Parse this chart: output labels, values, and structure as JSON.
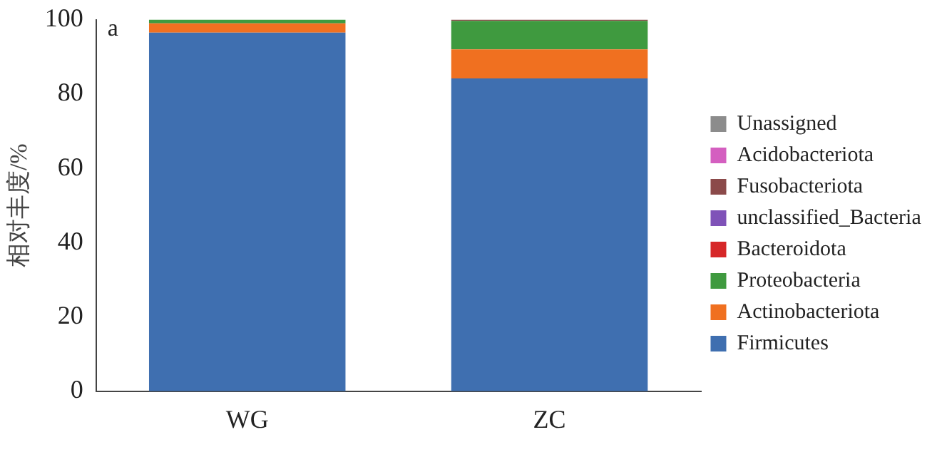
{
  "chart_data": {
    "type": "bar",
    "stacked": true,
    "ylabel": "相对丰度/%",
    "categories": [
      "WG",
      "ZC"
    ],
    "series": [
      {
        "name": "Firmicutes",
        "color": "#3f6fb0",
        "values": [
          96.5,
          84.2
        ]
      },
      {
        "name": "Actinobacteriota",
        "color": "#f07020",
        "values": [
          2.5,
          7.8
        ]
      },
      {
        "name": "Proteobacteria",
        "color": "#3f9a3f",
        "values": [
          1.0,
          7.7
        ]
      },
      {
        "name": "Bacteroidota",
        "color": "#d62728",
        "values": [
          0,
          0
        ]
      },
      {
        "name": "unclassified_Bacteria",
        "color": "#7f52b8",
        "values": [
          0,
          0
        ]
      },
      {
        "name": "Fusobacteriota",
        "color": "#8b4a4a",
        "values": [
          0,
          0.3
        ]
      },
      {
        "name": "Acidobacteriota",
        "color": "#d45fc0",
        "values": [
          0,
          0
        ]
      },
      {
        "name": "Unassigned",
        "color": "#8c8c8c",
        "values": [
          0,
          0
        ]
      }
    ],
    "ylim": [
      0,
      100
    ],
    "yticks": [
      0,
      20,
      40,
      60,
      80,
      100
    ],
    "grid": false,
    "legend": "right",
    "annotations": [
      "a"
    ]
  }
}
